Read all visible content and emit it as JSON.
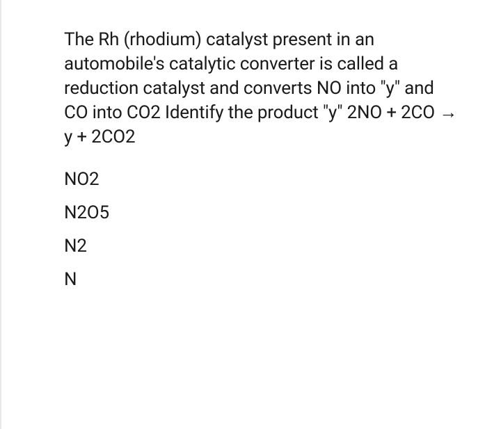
{
  "question": {
    "text": "The Rh (rhodium) catalyst present in an automobile's catalytic converter is called a reduction catalyst and converts NO into \"y\" and CO into CO2 Identify the product \"y\" 2NO + 2CO → y + 2CO2",
    "text_color": "#1a1a1a",
    "fontsize": 26,
    "background_color": "#ffffff"
  },
  "options": [
    {
      "label": "NO2"
    },
    {
      "label": "N2O5"
    },
    {
      "label": "N2"
    },
    {
      "label": "N"
    }
  ],
  "styling": {
    "card_background": "#ffffff",
    "page_background": "#f5f5f5",
    "border_color": "#e8e8e8",
    "option_fontsize": 26,
    "option_gap": 18
  }
}
